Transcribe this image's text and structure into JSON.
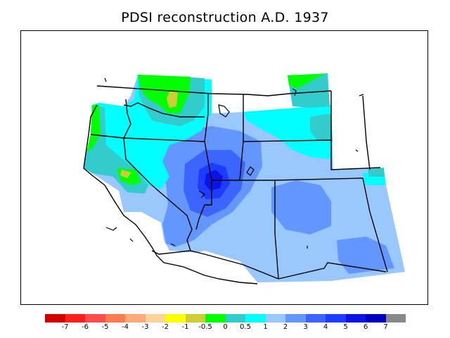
{
  "title": "PDSI reconstruction A.D. 1937",
  "legend": {
    "colors": [
      "#d40000",
      "#ff1e1e",
      "#ff4c4c",
      "#ff7a50",
      "#ffa878",
      "#ffd29c",
      "#ffff00",
      "#cdcd38",
      "#00ff00",
      "#33cccc",
      "#00ffff",
      "#99c8ff",
      "#6496ff",
      "#3c64ff",
      "#1e3cff",
      "#0a14e6",
      "#0000c0",
      "#888888"
    ],
    "labels": [
      "-7",
      "-6",
      "-5",
      "-4",
      "-3",
      "-2",
      "-1",
      "-0.5",
      "0",
      "0.5",
      "1",
      "2",
      "3",
      "4",
      "5",
      "6",
      "7"
    ]
  },
  "map": {
    "ocean_color": "#ffffff",
    "line_color": "#000000"
  }
}
